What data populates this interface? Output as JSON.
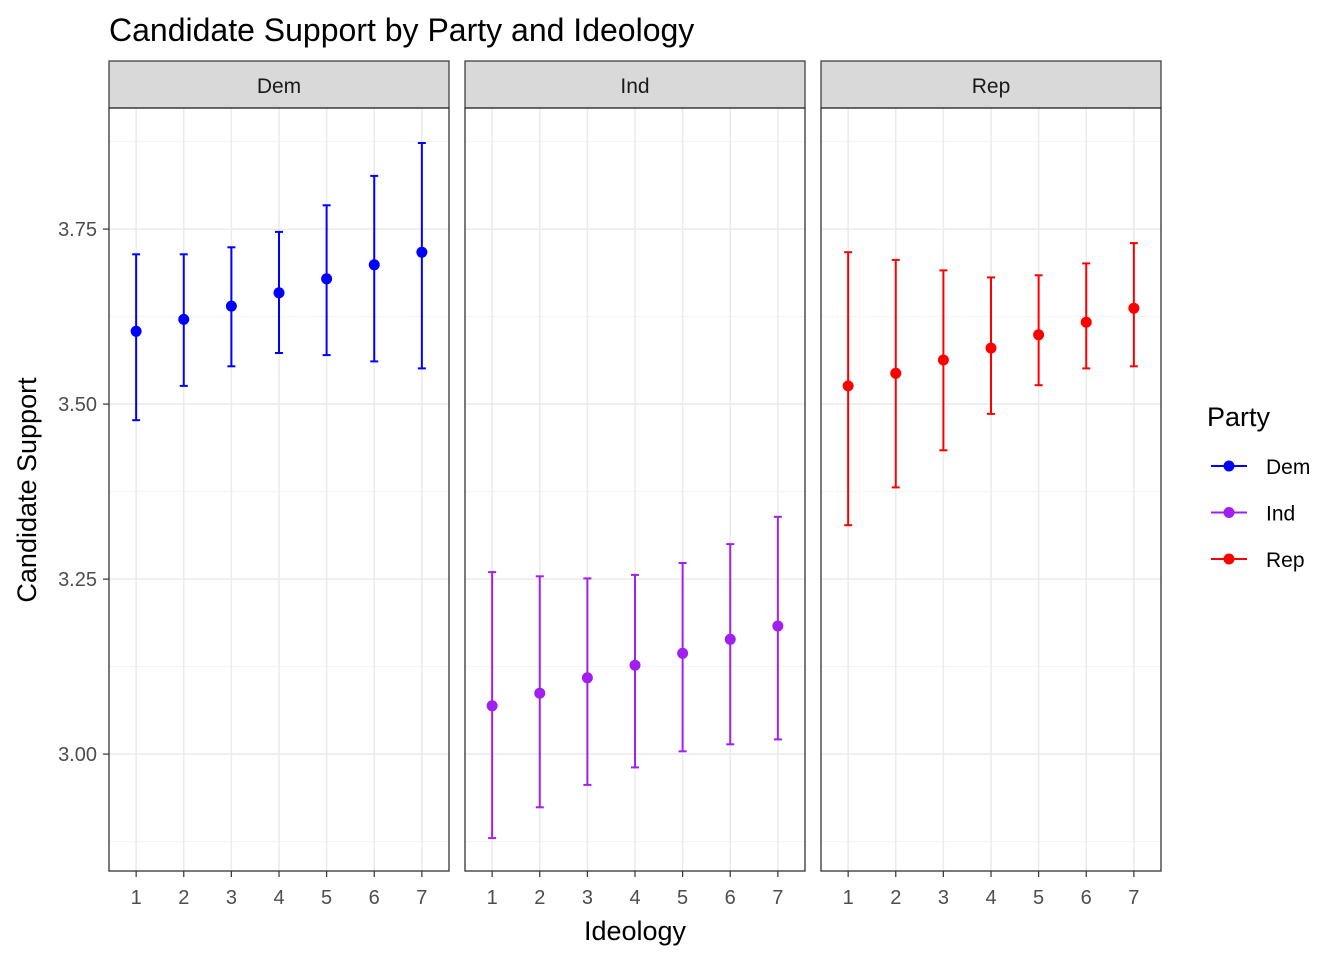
{
  "chart_data": {
    "type": "scatter",
    "subtype": "point-errorbar-faceted",
    "title": "Candidate Support by Party and Ideology",
    "xlabel": "Ideology",
    "ylabel": "Candidate Support",
    "x": [
      1,
      2,
      3,
      4,
      5,
      6,
      7
    ],
    "x_tick_labels": [
      "1",
      "2",
      "3",
      "4",
      "5",
      "6",
      "7"
    ],
    "y_ticks": [
      3.0,
      3.25,
      3.5,
      3.75
    ],
    "y_tick_labels": [
      "3.00",
      "3.25",
      "3.50",
      "3.75"
    ],
    "ylim": [
      2.833,
      3.923
    ],
    "xlim": [
      0.43,
      7.57
    ],
    "grid": true,
    "legend": {
      "title": "Party",
      "position": "right"
    },
    "series": [
      {
        "name": "Dem",
        "color": "#0000FF",
        "values": [
          3.604,
          3.621,
          3.64,
          3.659,
          3.679,
          3.699,
          3.717
        ],
        "upper": [
          3.714,
          3.714,
          3.724,
          3.746,
          3.784,
          3.826,
          3.873
        ],
        "lower": [
          3.477,
          3.526,
          3.554,
          3.573,
          3.57,
          3.561,
          3.551
        ]
      },
      {
        "name": "Ind",
        "color": "#A020F0",
        "values": [
          3.069,
          3.087,
          3.109,
          3.127,
          3.144,
          3.164,
          3.183
        ],
        "upper": [
          3.26,
          3.254,
          3.251,
          3.256,
          3.273,
          3.3,
          3.339
        ],
        "lower": [
          2.88,
          2.924,
          2.956,
          2.981,
          3.004,
          3.014,
          3.021
        ]
      },
      {
        "name": "Rep",
        "color": "#FF0000",
        "values": [
          3.526,
          3.544,
          3.563,
          3.58,
          3.599,
          3.617,
          3.637
        ],
        "upper": [
          3.717,
          3.706,
          3.691,
          3.681,
          3.684,
          3.701,
          3.73
        ],
        "lower": [
          3.327,
          3.381,
          3.434,
          3.486,
          3.527,
          3.551,
          3.554
        ]
      }
    ]
  }
}
